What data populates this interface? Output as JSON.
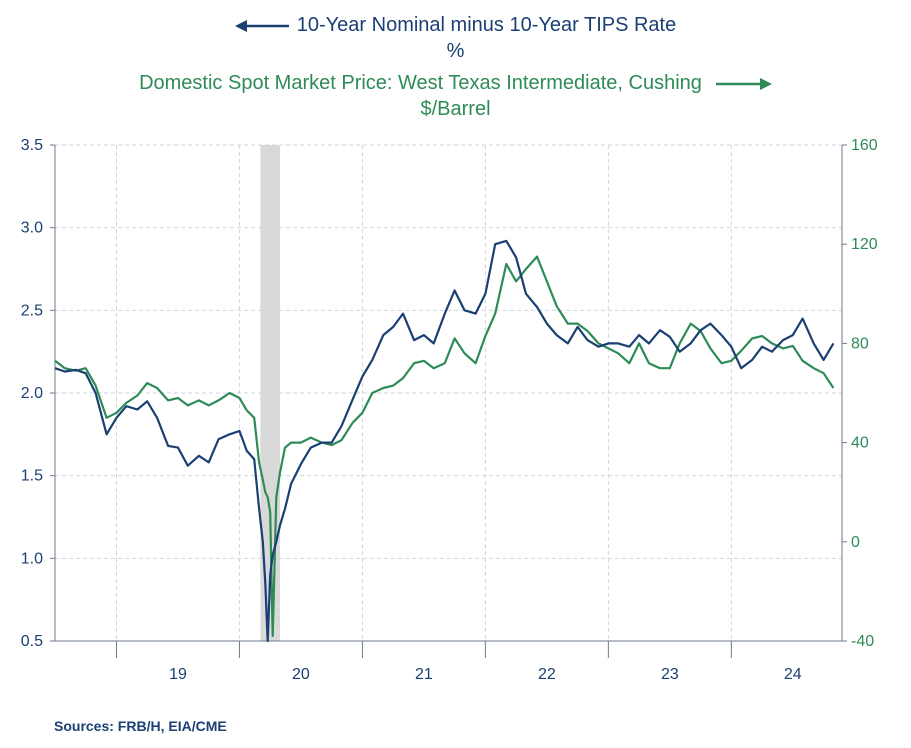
{
  "legend": {
    "left_series_title": "10-Year Nominal minus 10-Year TIPS Rate",
    "left_series_unit": "%",
    "right_series_title": "Domestic Spot Market Price: West Texas Intermediate, Cushing",
    "right_series_unit": "$/Barrel"
  },
  "sources": "Sources:  FRB/H, EIA/CME",
  "colors": {
    "blue": "#1b3f73",
    "green": "#2e8b57",
    "recession": "#d9d9d9",
    "grid": "#cfd6de",
    "axis": "#6d7b8c"
  },
  "chart_data": {
    "type": "line",
    "x_unit": "year",
    "xlim": [
      2018.5,
      2024.9
    ],
    "x_tick_labels": [
      "19",
      "20",
      "21",
      "22",
      "23",
      "24"
    ],
    "left_axis": {
      "ylim": [
        0.5,
        3.5
      ],
      "ticks": [
        "3.5",
        "3.0",
        "2.5",
        "2.0",
        "1.5",
        "1.0",
        "0.5"
      ]
    },
    "right_axis": {
      "ylim": [
        -40,
        160
      ],
      "ticks": [
        "160",
        "120",
        "80",
        "40",
        "0",
        "-40"
      ]
    },
    "grid": true,
    "shaded_period": [
      2020.17,
      2020.33
    ],
    "series": [
      {
        "name": "10-Year Nominal minus 10-Year TIPS Rate",
        "axis": "left",
        "color": "#1b3f73",
        "x": [
          2018.5,
          2018.58,
          2018.67,
          2018.75,
          2018.83,
          2018.92,
          2019.0,
          2019.08,
          2019.17,
          2019.25,
          2019.33,
          2019.42,
          2019.5,
          2019.58,
          2019.67,
          2019.75,
          2019.83,
          2019.92,
          2020.0,
          2020.06,
          2020.12,
          2020.16,
          2020.19,
          2020.21,
          2020.23,
          2020.25,
          2020.27,
          2020.3,
          2020.33,
          2020.37,
          2020.42,
          2020.5,
          2020.58,
          2020.67,
          2020.75,
          2020.83,
          2020.92,
          2021.0,
          2021.08,
          2021.17,
          2021.25,
          2021.33,
          2021.42,
          2021.5,
          2021.58,
          2021.67,
          2021.75,
          2021.83,
          2021.92,
          2022.0,
          2022.08,
          2022.17,
          2022.25,
          2022.33,
          2022.42,
          2022.5,
          2022.58,
          2022.67,
          2022.75,
          2022.83,
          2022.92,
          2023.0,
          2023.08,
          2023.17,
          2023.25,
          2023.33,
          2023.42,
          2023.5,
          2023.58,
          2023.67,
          2023.75,
          2023.83,
          2023.92,
          2024.0,
          2024.08,
          2024.17,
          2024.25,
          2024.33,
          2024.42,
          2024.5,
          2024.58,
          2024.67,
          2024.75,
          2024.83
        ],
        "y": [
          2.15,
          2.13,
          2.14,
          2.12,
          2.0,
          1.75,
          1.85,
          1.92,
          1.9,
          1.95,
          1.85,
          1.68,
          1.67,
          1.56,
          1.62,
          1.58,
          1.72,
          1.75,
          1.77,
          1.65,
          1.6,
          1.3,
          1.1,
          0.85,
          0.5,
          0.9,
          1.02,
          1.1,
          1.2,
          1.3,
          1.45,
          1.57,
          1.67,
          1.7,
          1.7,
          1.8,
          1.96,
          2.1,
          2.2,
          2.35,
          2.4,
          2.48,
          2.32,
          2.35,
          2.3,
          2.48,
          2.62,
          2.5,
          2.48,
          2.6,
          2.9,
          2.92,
          2.82,
          2.6,
          2.52,
          2.42,
          2.35,
          2.3,
          2.4,
          2.32,
          2.28,
          2.3,
          2.3,
          2.28,
          2.35,
          2.3,
          2.38,
          2.34,
          2.25,
          2.3,
          2.38,
          2.42,
          2.35,
          2.28,
          2.15,
          2.2,
          2.28,
          2.25,
          2.32,
          2.35,
          2.45,
          2.3,
          2.2,
          2.3
        ]
      },
      {
        "name": "Domestic Spot Market Price: West Texas Intermediate, Cushing",
        "axis": "right",
        "color": "#2e8b57",
        "x": [
          2018.5,
          2018.58,
          2018.67,
          2018.75,
          2018.83,
          2018.92,
          2019.0,
          2019.08,
          2019.17,
          2019.25,
          2019.33,
          2019.42,
          2019.5,
          2019.58,
          2019.67,
          2019.75,
          2019.83,
          2019.92,
          2020.0,
          2020.06,
          2020.12,
          2020.16,
          2020.19,
          2020.21,
          2020.23,
          2020.25,
          2020.27,
          2020.3,
          2020.33,
          2020.37,
          2020.42,
          2020.5,
          2020.58,
          2020.67,
          2020.75,
          2020.83,
          2020.92,
          2021.0,
          2021.08,
          2021.17,
          2021.25,
          2021.33,
          2021.42,
          2021.5,
          2021.58,
          2021.67,
          2021.75,
          2021.83,
          2021.92,
          2022.0,
          2022.08,
          2022.17,
          2022.25,
          2022.33,
          2022.42,
          2022.5,
          2022.58,
          2022.67,
          2022.75,
          2022.83,
          2022.92,
          2023.0,
          2023.08,
          2023.17,
          2023.25,
          2023.33,
          2023.42,
          2023.5,
          2023.58,
          2023.67,
          2023.75,
          2023.83,
          2023.92,
          2024.0,
          2024.08,
          2024.17,
          2024.25,
          2024.33,
          2024.42,
          2024.5,
          2024.58,
          2024.67,
          2024.75,
          2024.83
        ],
        "y": [
          73,
          70,
          69,
          70,
          63,
          50,
          52,
          56,
          59,
          64,
          62,
          57,
          58,
          55,
          57,
          55,
          57,
          60,
          58,
          53,
          50,
          32,
          25,
          20,
          18,
          12,
          -38,
          18,
          28,
          38,
          40,
          40,
          42,
          40,
          39,
          41,
          48,
          52,
          60,
          62,
          63,
          66,
          72,
          73,
          70,
          72,
          82,
          76,
          72,
          83,
          92,
          112,
          105,
          110,
          115,
          105,
          95,
          88,
          88,
          85,
          80,
          78,
          76,
          72,
          80,
          72,
          70,
          70,
          80,
          88,
          85,
          78,
          72,
          73,
          77,
          82,
          83,
          80,
          78,
          79,
          73,
          70,
          68,
          62
        ]
      }
    ]
  }
}
